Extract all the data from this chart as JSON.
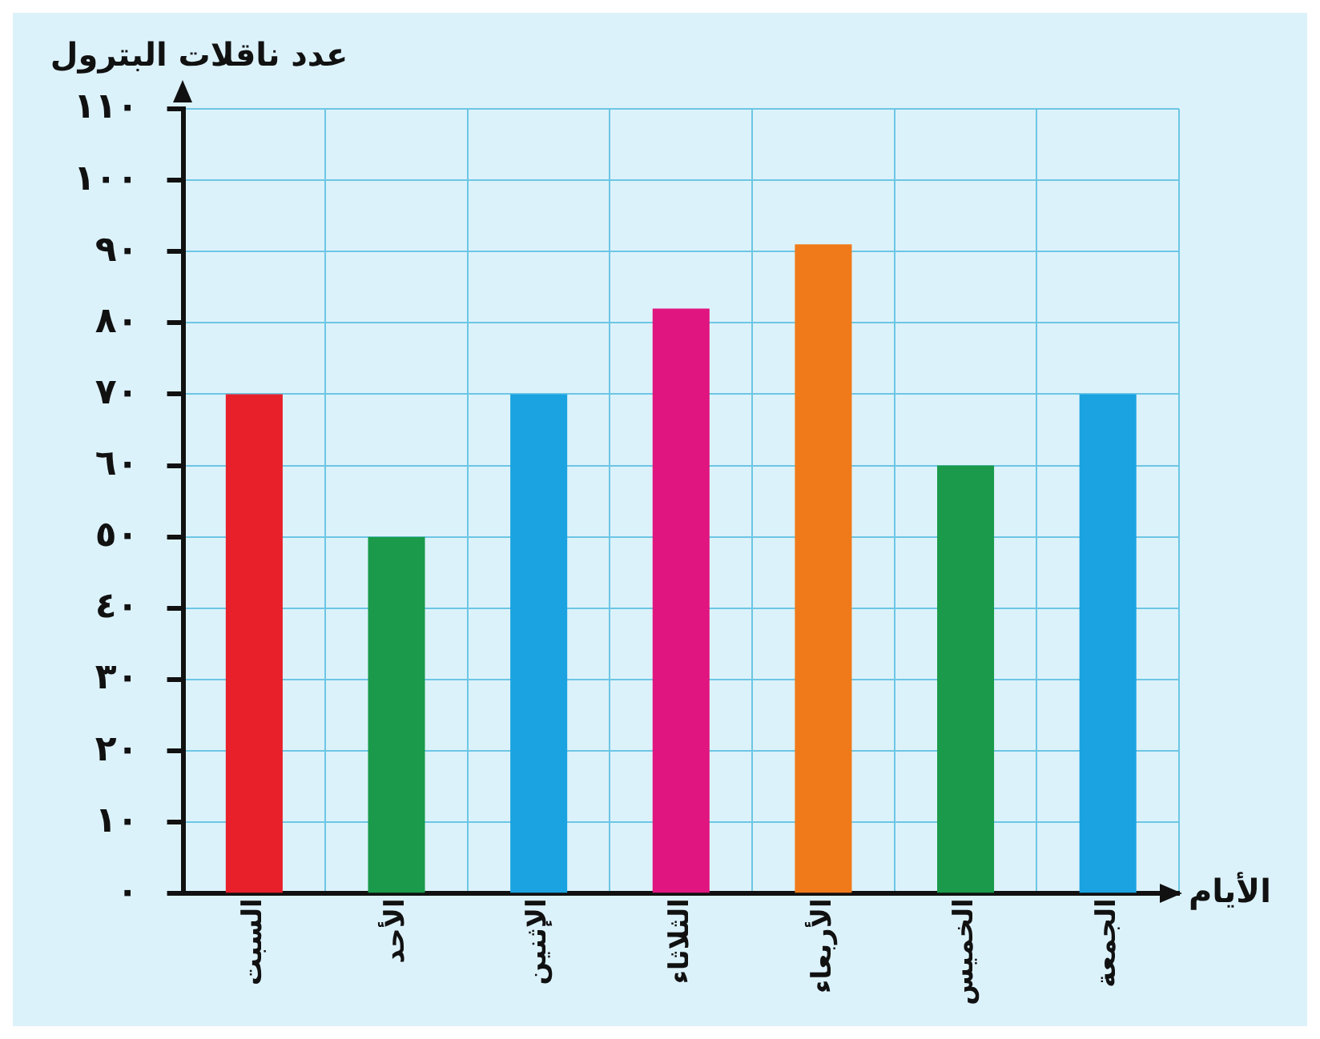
{
  "chart_data": {
    "type": "bar",
    "xlabel": "الأيام",
    "ylabel": "عدد ناقلات البترول",
    "categories": [
      "السبت",
      "الأحد",
      "الإثنين",
      "الثلاثاء",
      "الأربعاء",
      "الخميس",
      "الجمعة"
    ],
    "values": [
      70,
      50,
      70,
      82,
      91,
      60,
      70
    ],
    "colors": [
      "#e8202a",
      "#1a9a4a",
      "#1aa3e0",
      "#e0157f",
      "#f07a1a",
      "#1a9a4a",
      "#1aa3e0"
    ],
    "ylim": [
      0,
      110
    ],
    "yticks": [
      {
        "value": 0,
        "label": "٠"
      },
      {
        "value": 10,
        "label": "١٠"
      },
      {
        "value": 20,
        "label": "٢٠"
      },
      {
        "value": 30,
        "label": "٣٠"
      },
      {
        "value": 40,
        "label": "٤٠"
      },
      {
        "value": 50,
        "label": "٥٠"
      },
      {
        "value": 60,
        "label": "٦٠"
      },
      {
        "value": 70,
        "label": "٧٠"
      },
      {
        "value": 80,
        "label": "٨٠"
      },
      {
        "value": 90,
        "label": "٩٠"
      },
      {
        "value": 100,
        "label": "١٠٠"
      },
      {
        "value": 110,
        "label": "١١٠"
      }
    ],
    "grid": true,
    "legend": false
  }
}
